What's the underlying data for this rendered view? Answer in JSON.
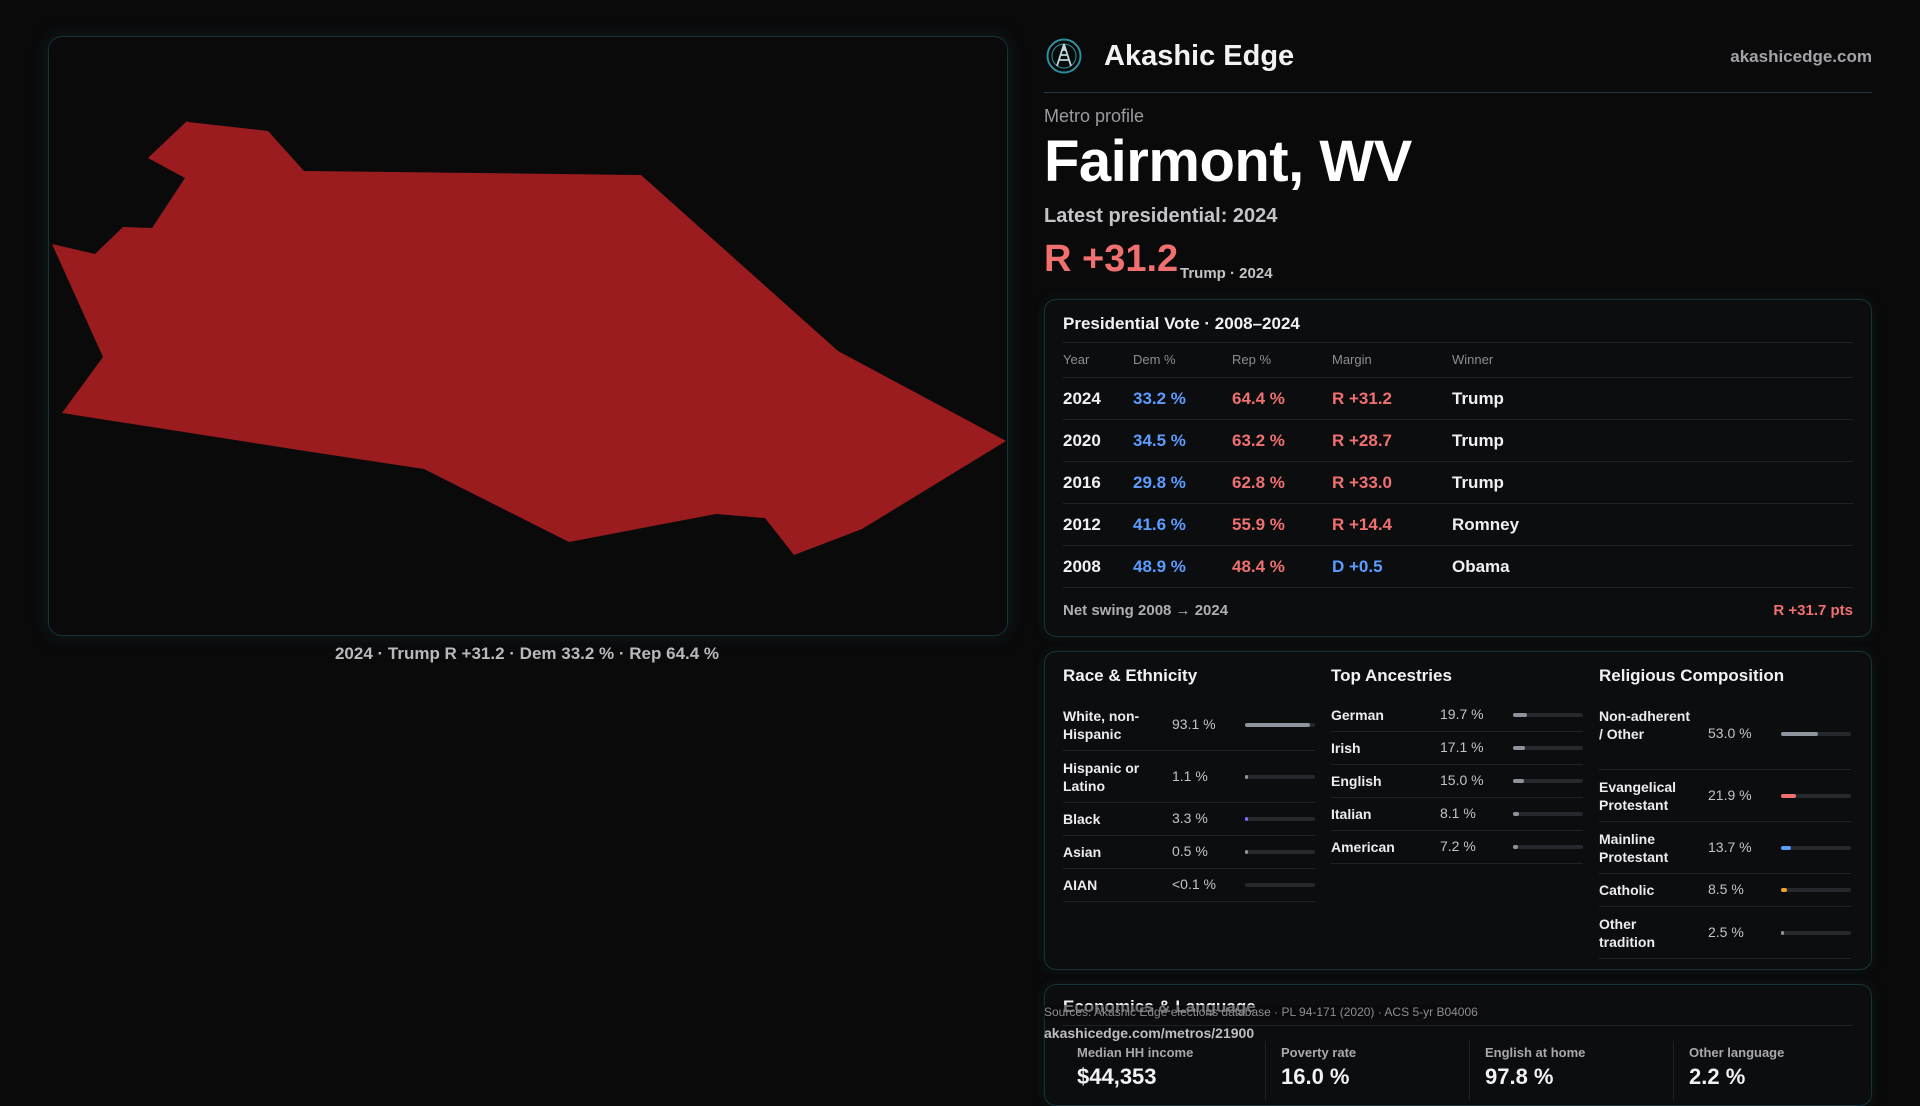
{
  "map": {
    "caption": "2024 · Trump R +31.2 · Dem 33.2 % · Rep 64.4 %",
    "fill_color": "#9b1c1f"
  },
  "brand": {
    "name": "Akashic Edge",
    "site": "akashicedge.com",
    "logo_icon": "compass-logo-icon"
  },
  "profile": {
    "kicker": "Metro profile",
    "city": "Fairmont, WV",
    "latest": "Latest presidential: 2024",
    "margin": "R +31.2",
    "margin_sub": "Trump · 2024"
  },
  "vote": {
    "title": "Presidential Vote · 2008–2024",
    "headers": [
      "Year",
      "Dem %",
      "Rep %",
      "Margin",
      "Winner"
    ],
    "rows": [
      {
        "year": "2024",
        "dem": "33.2 %",
        "rep": "64.4 %",
        "margin": "R +31.2",
        "party": "R",
        "winner": "Trump"
      },
      {
        "year": "2020",
        "dem": "34.5 %",
        "rep": "63.2 %",
        "margin": "R +28.7",
        "party": "R",
        "winner": "Trump"
      },
      {
        "year": "2016",
        "dem": "29.8 %",
        "rep": "62.8 %",
        "margin": "R +33.0",
        "party": "R",
        "winner": "Trump"
      },
      {
        "year": "2012",
        "dem": "41.6 %",
        "rep": "55.9 %",
        "margin": "R +14.4",
        "party": "R",
        "winner": "Romney"
      },
      {
        "year": "2008",
        "dem": "48.9 %",
        "rep": "48.4 %",
        "margin": "D +0.5",
        "party": "D",
        "winner": "Obama"
      }
    ],
    "swing_label": "Net swing 2008 → 2024",
    "swing_value": "R +31.7 pts"
  },
  "race": {
    "title": "Race & Ethnicity",
    "items": [
      {
        "label": "White, non-Hispanic",
        "pct": "93.1 %",
        "share": 0.931,
        "color": "#8e949c"
      },
      {
        "label": "Hispanic or Latino",
        "pct": "1.1 %",
        "share": 0.011,
        "color": "#8e949c"
      },
      {
        "label": "Black",
        "pct": "3.3 %",
        "share": 0.033,
        "color": "#7a6cff"
      },
      {
        "label": "Asian",
        "pct": "0.5 %",
        "share": 0.005,
        "color": "#8e949c"
      },
      {
        "label": "AIAN",
        "pct": "<0.1 %",
        "share": 0.0,
        "color": "#8e949c"
      }
    ]
  },
  "ancestry": {
    "title": "Top Ancestries",
    "items": [
      {
        "label": "German",
        "pct": "19.7 %",
        "share": 0.197,
        "color": "#8e949c"
      },
      {
        "label": "Irish",
        "pct": "17.1 %",
        "share": 0.171,
        "color": "#8e949c"
      },
      {
        "label": "English",
        "pct": "15.0 %",
        "share": 0.15,
        "color": "#8e949c"
      },
      {
        "label": "Italian",
        "pct": "8.1 %",
        "share": 0.081,
        "color": "#8e949c"
      },
      {
        "label": "American",
        "pct": "7.2 %",
        "share": 0.072,
        "color": "#8e949c"
      }
    ]
  },
  "religion": {
    "title": "Religious Composition",
    "items": [
      {
        "label": "Non-adherent / Other",
        "pct": "53.0 %",
        "share": 0.53,
        "color": "#8e949c"
      },
      {
        "label": "Evangelical Protestant",
        "pct": "21.9 %",
        "share": 0.219,
        "color": "#f07070"
      },
      {
        "label": "Mainline Protestant",
        "pct": "13.7 %",
        "share": 0.137,
        "color": "#5b9cff"
      },
      {
        "label": "Catholic",
        "pct": "8.5 %",
        "share": 0.085,
        "color": "#f0a030"
      },
      {
        "label": "Other tradition",
        "pct": "2.5 %",
        "share": 0.025,
        "color": "#8e949c"
      }
    ]
  },
  "econ": {
    "title": "Economics & Language",
    "metrics": [
      {
        "label": "Median HH income",
        "value": "$44,353"
      },
      {
        "label": "Poverty rate",
        "value": "16.0 %"
      },
      {
        "label": "English at home",
        "value": "97.8 %"
      },
      {
        "label": "Other language",
        "value": "2.2 %"
      }
    ]
  },
  "footer": {
    "sources": "Sources: Akashic Edge elections database · PL 94-171 (2020) · ACS 5-yr B04006",
    "permalink": "akashicedge.com/metros/21900"
  }
}
